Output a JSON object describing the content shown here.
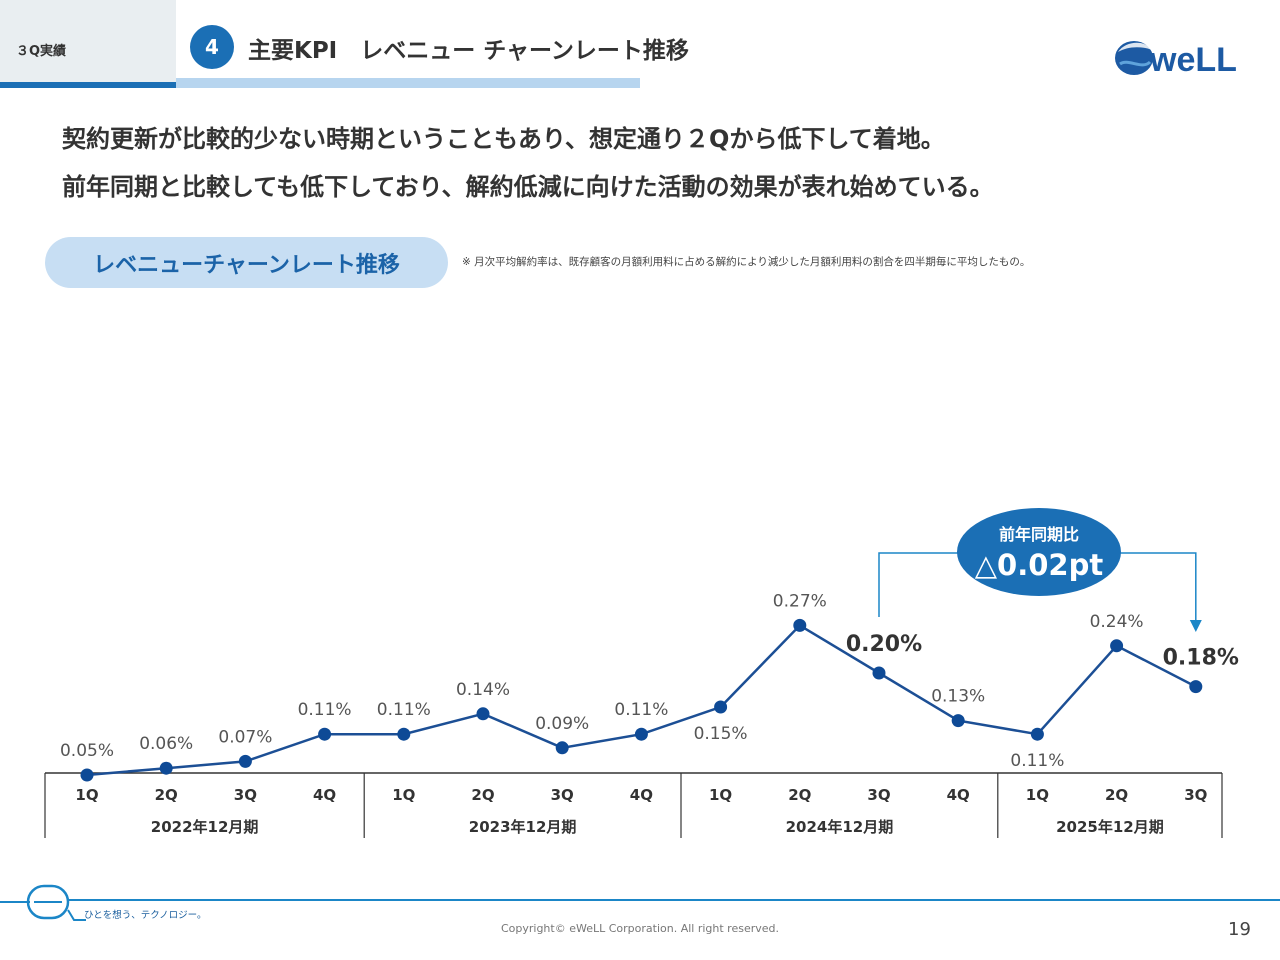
{
  "header": {
    "section": "３Q実績",
    "number": "4",
    "title": "主要KPI　レベニュー チャーンレート推移",
    "logo_text": "weLL"
  },
  "message": {
    "line1": "契約更新が比較的少ない時期ということもあり、想定通り２Qから低下して着地。",
    "line2": "前年同期と比較しても低下しており、解約低減に向けた活動の効果が表れ始めている。"
  },
  "chart_title": "レベニューチャーンレート推移",
  "note": "※ 月次平均解約率は、既存顧客の月額利用料に占める解約により減少した月額利用料の割合を四半期毎に平均したもの。",
  "chart_data": {
    "type": "line",
    "title": "レベニューチャーンレート推移",
    "categories": [
      "1Q",
      "2Q",
      "3Q",
      "4Q",
      "1Q",
      "2Q",
      "3Q",
      "4Q",
      "1Q",
      "2Q",
      "3Q",
      "4Q",
      "1Q",
      "2Q",
      "3Q"
    ],
    "year_groups": [
      {
        "label": "2022年12月期",
        "count": 4
      },
      {
        "label": "2023年12月期",
        "count": 4
      },
      {
        "label": "2024年12月期",
        "count": 4
      },
      {
        "label": "2025年12月期",
        "count": 3
      }
    ],
    "series": [
      {
        "name": "レベニューチャーンレート",
        "values": [
          0.05,
          0.06,
          0.07,
          0.11,
          0.11,
          0.14,
          0.09,
          0.11,
          0.15,
          0.27,
          0.2,
          0.13,
          0.11,
          0.24,
          0.18
        ],
        "labels": [
          "0.05%",
          "0.06%",
          "0.07%",
          "0.11%",
          "0.11%",
          "0.14%",
          "0.09%",
          "0.11%",
          "0.15%",
          "0.27%",
          "0.20%",
          "0.13%",
          "0.11%",
          "0.24%",
          "0.18%"
        ]
      }
    ],
    "unit": "%",
    "highlighted_indices": [
      10,
      14
    ],
    "annotation": {
      "title": "前年同期比",
      "value": "△0.02pt",
      "from_index": 10,
      "to_index": 14
    },
    "colors": {
      "line": "#1c4f95",
      "marker": "#0e4a96",
      "bracket": "#1b86c7",
      "badge": "#1b6fb5"
    }
  },
  "footer": {
    "tagline": "ひとを想う、テクノロジー。",
    "copyright": "Copyright© eWeLL Corporation. All right reserved.",
    "page": "19"
  }
}
